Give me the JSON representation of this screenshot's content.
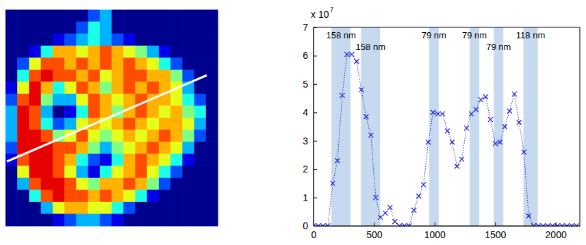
{
  "chart_data": [
    {
      "type": "heatmap",
      "clim": [
        0,
        10
      ],
      "cells": [
        [
          0,
          0,
          0,
          0,
          0,
          0,
          0,
          2,
          3,
          0,
          0,
          0,
          0,
          0,
          0,
          0,
          0,
          0
        ],
        [
          0,
          0,
          0,
          0,
          0,
          0,
          2,
          4,
          3,
          0,
          0,
          0,
          0,
          0,
          0,
          0,
          0,
          0
        ],
        [
          0,
          0,
          0,
          0,
          1,
          2,
          3,
          4,
          3,
          2,
          1,
          0,
          0,
          0,
          0,
          0,
          0,
          0
        ],
        [
          0,
          0,
          1,
          4,
          7,
          7,
          6,
          7,
          8,
          7,
          6,
          5,
          3,
          1,
          0,
          0,
          0,
          0
        ],
        [
          0,
          2,
          6,
          8,
          8,
          7,
          8,
          7,
          8,
          7,
          8,
          7,
          6,
          4,
          2,
          0,
          0,
          0
        ],
        [
          0,
          4,
          8,
          9,
          8,
          8,
          7,
          8,
          6,
          7,
          8,
          8,
          7,
          7,
          5,
          2,
          0,
          0
        ],
        [
          1,
          6,
          9,
          7,
          4,
          6,
          8,
          7,
          5,
          7,
          8,
          7,
          8,
          7,
          6,
          3,
          0,
          0
        ],
        [
          2,
          8,
          9,
          5,
          3,
          3,
          6,
          8,
          7,
          6,
          7,
          8,
          7,
          7,
          6,
          4,
          2,
          0
        ],
        [
          3,
          9,
          8,
          3,
          0,
          1,
          4,
          8,
          7,
          5,
          7,
          8,
          7,
          6,
          7,
          5,
          4,
          0
        ],
        [
          3,
          9,
          8,
          4,
          2,
          3,
          6,
          7,
          6,
          7,
          8,
          7,
          6,
          7,
          7,
          6,
          3,
          0
        ],
        [
          3,
          9,
          9,
          8,
          5,
          6,
          8,
          6,
          5,
          6,
          7,
          6,
          7,
          8,
          7,
          5,
          2,
          0
        ],
        [
          2,
          9,
          9,
          9,
          8,
          8,
          7,
          5,
          3,
          5,
          6,
          7,
          8,
          7,
          6,
          3,
          0,
          0
        ],
        [
          1,
          8,
          9,
          9,
          8,
          7,
          4,
          2,
          1,
          4,
          7,
          8,
          7,
          6,
          4,
          1,
          0,
          0
        ],
        [
          0,
          6,
          9,
          9,
          8,
          6,
          3,
          1,
          4,
          6,
          7,
          8,
          6,
          4,
          2,
          0,
          0,
          0
        ],
        [
          0,
          3,
          8,
          9,
          9,
          8,
          6,
          5,
          7,
          7,
          8,
          7,
          5,
          2,
          0,
          0,
          0,
          0
        ],
        [
          0,
          0,
          4,
          8,
          9,
          8,
          8,
          7,
          8,
          7,
          6,
          4,
          1,
          0,
          0,
          0,
          0,
          0
        ],
        [
          0,
          0,
          0,
          3,
          6,
          7,
          7,
          6,
          6,
          4,
          2,
          0,
          0,
          0,
          0,
          0,
          0,
          0
        ],
        [
          0,
          0,
          0,
          0,
          1,
          2,
          3,
          3,
          2,
          1,
          0,
          0,
          0,
          0,
          0,
          0,
          0,
          0
        ]
      ]
    },
    {
      "type": "line",
      "ylabel_multiplier": "x 10",
      "ylabel_exponent": "7",
      "x": [
        0,
        39.5,
        79,
        118.5,
        158,
        197.5,
        237,
        276.5,
        316,
        355.5,
        395,
        434.5,
        474,
        513.5,
        553,
        592.5,
        632,
        671.5,
        711,
        750.5,
        790,
        829.5,
        869,
        908.5,
        948,
        987.5,
        1027,
        1066.5,
        1106,
        1145.5,
        1185,
        1224.5,
        1264,
        1303.5,
        1343,
        1382.5,
        1422,
        1461.5,
        1501,
        1540.5,
        1580,
        1619.5,
        1659,
        1698.5,
        1738,
        1777.5,
        1817,
        1856.5,
        1896,
        1935.5,
        1975,
        2014.5,
        2054,
        2093.5,
        2133,
        2172.5
      ],
      "values": [
        0,
        0,
        0,
        0,
        1.5,
        2.3,
        4.6,
        6.05,
        6.05,
        5.8,
        4.8,
        3.85,
        3.2,
        1.0,
        0.3,
        0.45,
        0.65,
        0.15,
        0,
        0,
        0,
        0.55,
        1.05,
        1.45,
        2.95,
        4.0,
        3.95,
        3.95,
        3.35,
        2.95,
        2.1,
        2.35,
        3.45,
        3.95,
        4.1,
        4.45,
        4.55,
        3.75,
        2.9,
        2.95,
        3.5,
        4.05,
        4.65,
        3.65,
        2.6,
        0.35,
        0,
        0,
        0,
        0,
        0,
        0,
        0,
        0,
        0,
        0
      ],
      "color": "#1f1fd6",
      "marker": "x",
      "line_style": "dotted",
      "xlim": [
        0,
        2200
      ],
      "xticks": [
        0,
        500,
        1000,
        1500,
        2000
      ],
      "ylim": [
        0,
        7
      ],
      "yticks": [
        0,
        1,
        2,
        3,
        4,
        5,
        6,
        7
      ],
      "bands": [
        {
          "start": 148,
          "end": 306,
          "label": "158 nm"
        },
        {
          "start": 392,
          "end": 550,
          "label": "158 nm"
        },
        {
          "start": 955,
          "end": 1034,
          "label": "79 nm"
        },
        {
          "start": 1290,
          "end": 1369,
          "label": "79 nm"
        },
        {
          "start": 1489,
          "end": 1568,
          "label": "79 nm"
        },
        {
          "start": 1734,
          "end": 1852,
          "label": "118 nm"
        }
      ]
    }
  ]
}
